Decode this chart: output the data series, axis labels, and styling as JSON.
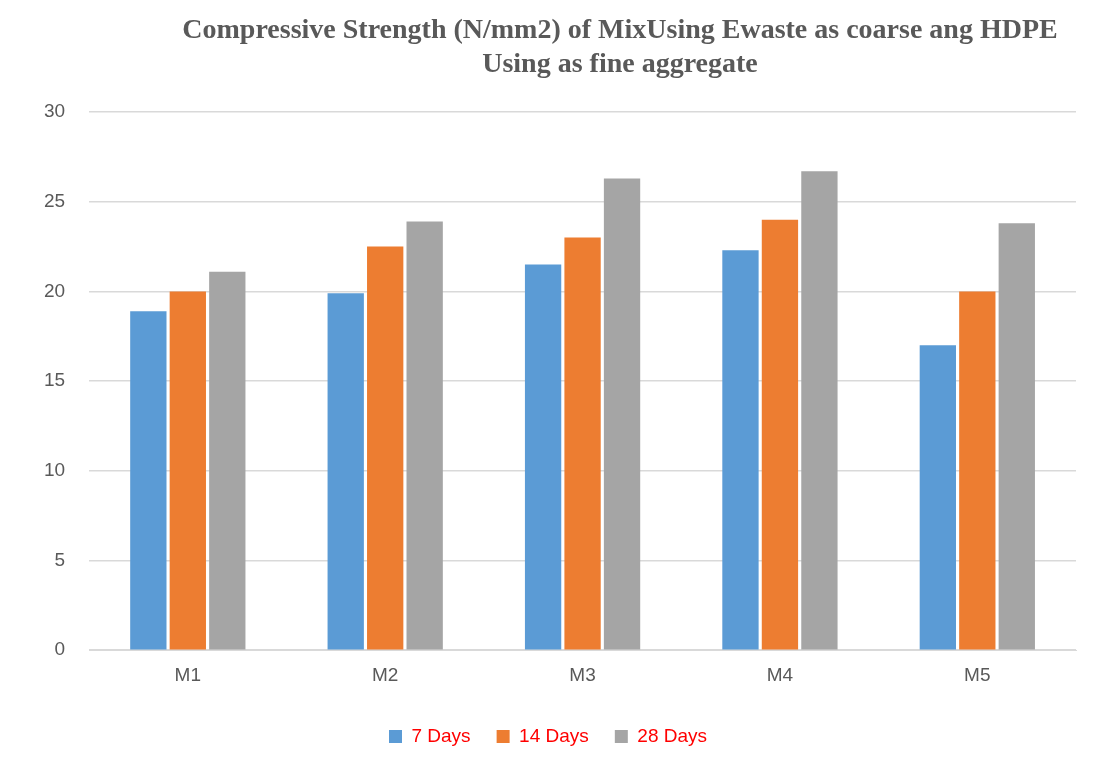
{
  "chart_data": {
    "type": "bar",
    "title": "Compressive Strength (N/mm2) of MixUsing Ewaste as coarse ang HDPE Using as fine aggregate",
    "categories": [
      "M1",
      "M2",
      "M3",
      "M4",
      "M5"
    ],
    "series": [
      {
        "name": "7 Days",
        "color": "#5b9bd5",
        "values": [
          18.9,
          19.9,
          21.5,
          22.3,
          17.0
        ]
      },
      {
        "name": "14 Days",
        "color": "#ed7d31",
        "values": [
          20.0,
          22.5,
          23.0,
          24.0,
          20.0
        ]
      },
      {
        "name": "28 Days",
        "color": "#a5a5a5",
        "values": [
          21.1,
          23.9,
          26.3,
          26.7,
          23.8
        ]
      }
    ],
    "ylim": [
      0,
      30
    ],
    "yticks": [
      0,
      5,
      10,
      15,
      20,
      25,
      30
    ],
    "grid": "y",
    "legend": "bottom"
  }
}
